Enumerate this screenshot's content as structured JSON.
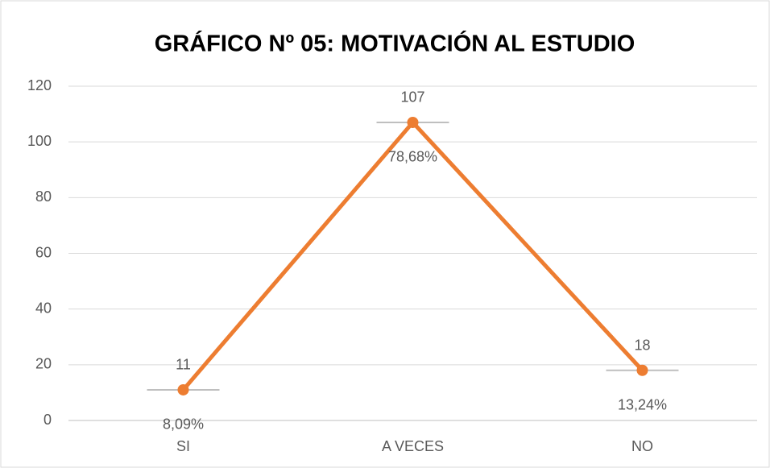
{
  "chart_data": {
    "type": "line",
    "title": "GRÁFICO Nº 05: MOTIVACIÓN AL ESTUDIO",
    "categories": [
      "SI",
      "A VECES",
      "NO"
    ],
    "series": [
      {
        "color": "#7f9fc0",
        "marker": "dash",
        "values": [
          11,
          107,
          18
        ]
      },
      {
        "color": "#ed7d31",
        "marker": "circle",
        "values": [
          11,
          107,
          18
        ]
      }
    ],
    "annotations": [
      "8,09%",
      "78,68%",
      "13,24%"
    ],
    "ylim": [
      0,
      120
    ],
    "yticks": [
      0,
      20,
      40,
      60,
      80,
      100,
      120
    ],
    "grid": true
  }
}
